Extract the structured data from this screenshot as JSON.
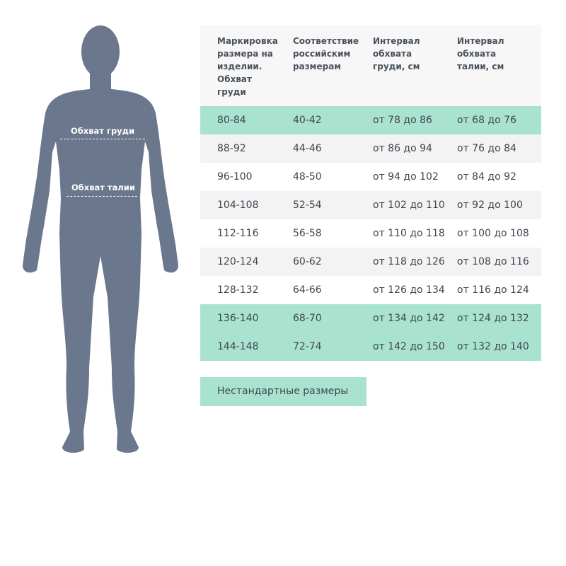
{
  "figure": {
    "chest_label": "Обхват груди",
    "waist_label": "Обхват талии",
    "color": "#6b778d"
  },
  "table": {
    "headers": [
      "Маркировка размера на изделии. Обхват груди",
      "Соответствие российским размерам",
      "Интервал обхвата груди, см",
      "Интервал обхвата талии, см"
    ],
    "rows": [
      {
        "cells": [
          "80-84",
          "40-42",
          "от 78 до 86",
          "от 68 до 76"
        ],
        "highlight": "green"
      },
      {
        "cells": [
          "88-92",
          "44-46",
          "от 86 до 94",
          "от 76 до 84"
        ],
        "highlight": "gray"
      },
      {
        "cells": [
          "96-100",
          "48-50",
          "от 94 до 102",
          "от 84 до 92"
        ],
        "highlight": "white"
      },
      {
        "cells": [
          "104-108",
          "52-54",
          "от 102 до 110",
          "от 92 до 100"
        ],
        "highlight": "gray"
      },
      {
        "cells": [
          "112-116",
          "56-58",
          "от 110 до 118",
          "от 100 до 108"
        ],
        "highlight": "white"
      },
      {
        "cells": [
          "120-124",
          "60-62",
          "от 118 до 126",
          "от 108 до 116"
        ],
        "highlight": "gray"
      },
      {
        "cells": [
          "128-132",
          "64-66",
          "от 126 до 134",
          "от 116 до 124"
        ],
        "highlight": "white"
      },
      {
        "cells": [
          "136-140",
          "68-70",
          "от 134 до 142",
          "от 124 до 132"
        ],
        "highlight": "green"
      },
      {
        "cells": [
          "144-148",
          "72-74",
          "от 142 до 150",
          "от 132 до 140"
        ],
        "highlight": "green"
      }
    ],
    "green_color": "#a9e3d0"
  },
  "nonstandard_label": "Нестандартные размеры"
}
